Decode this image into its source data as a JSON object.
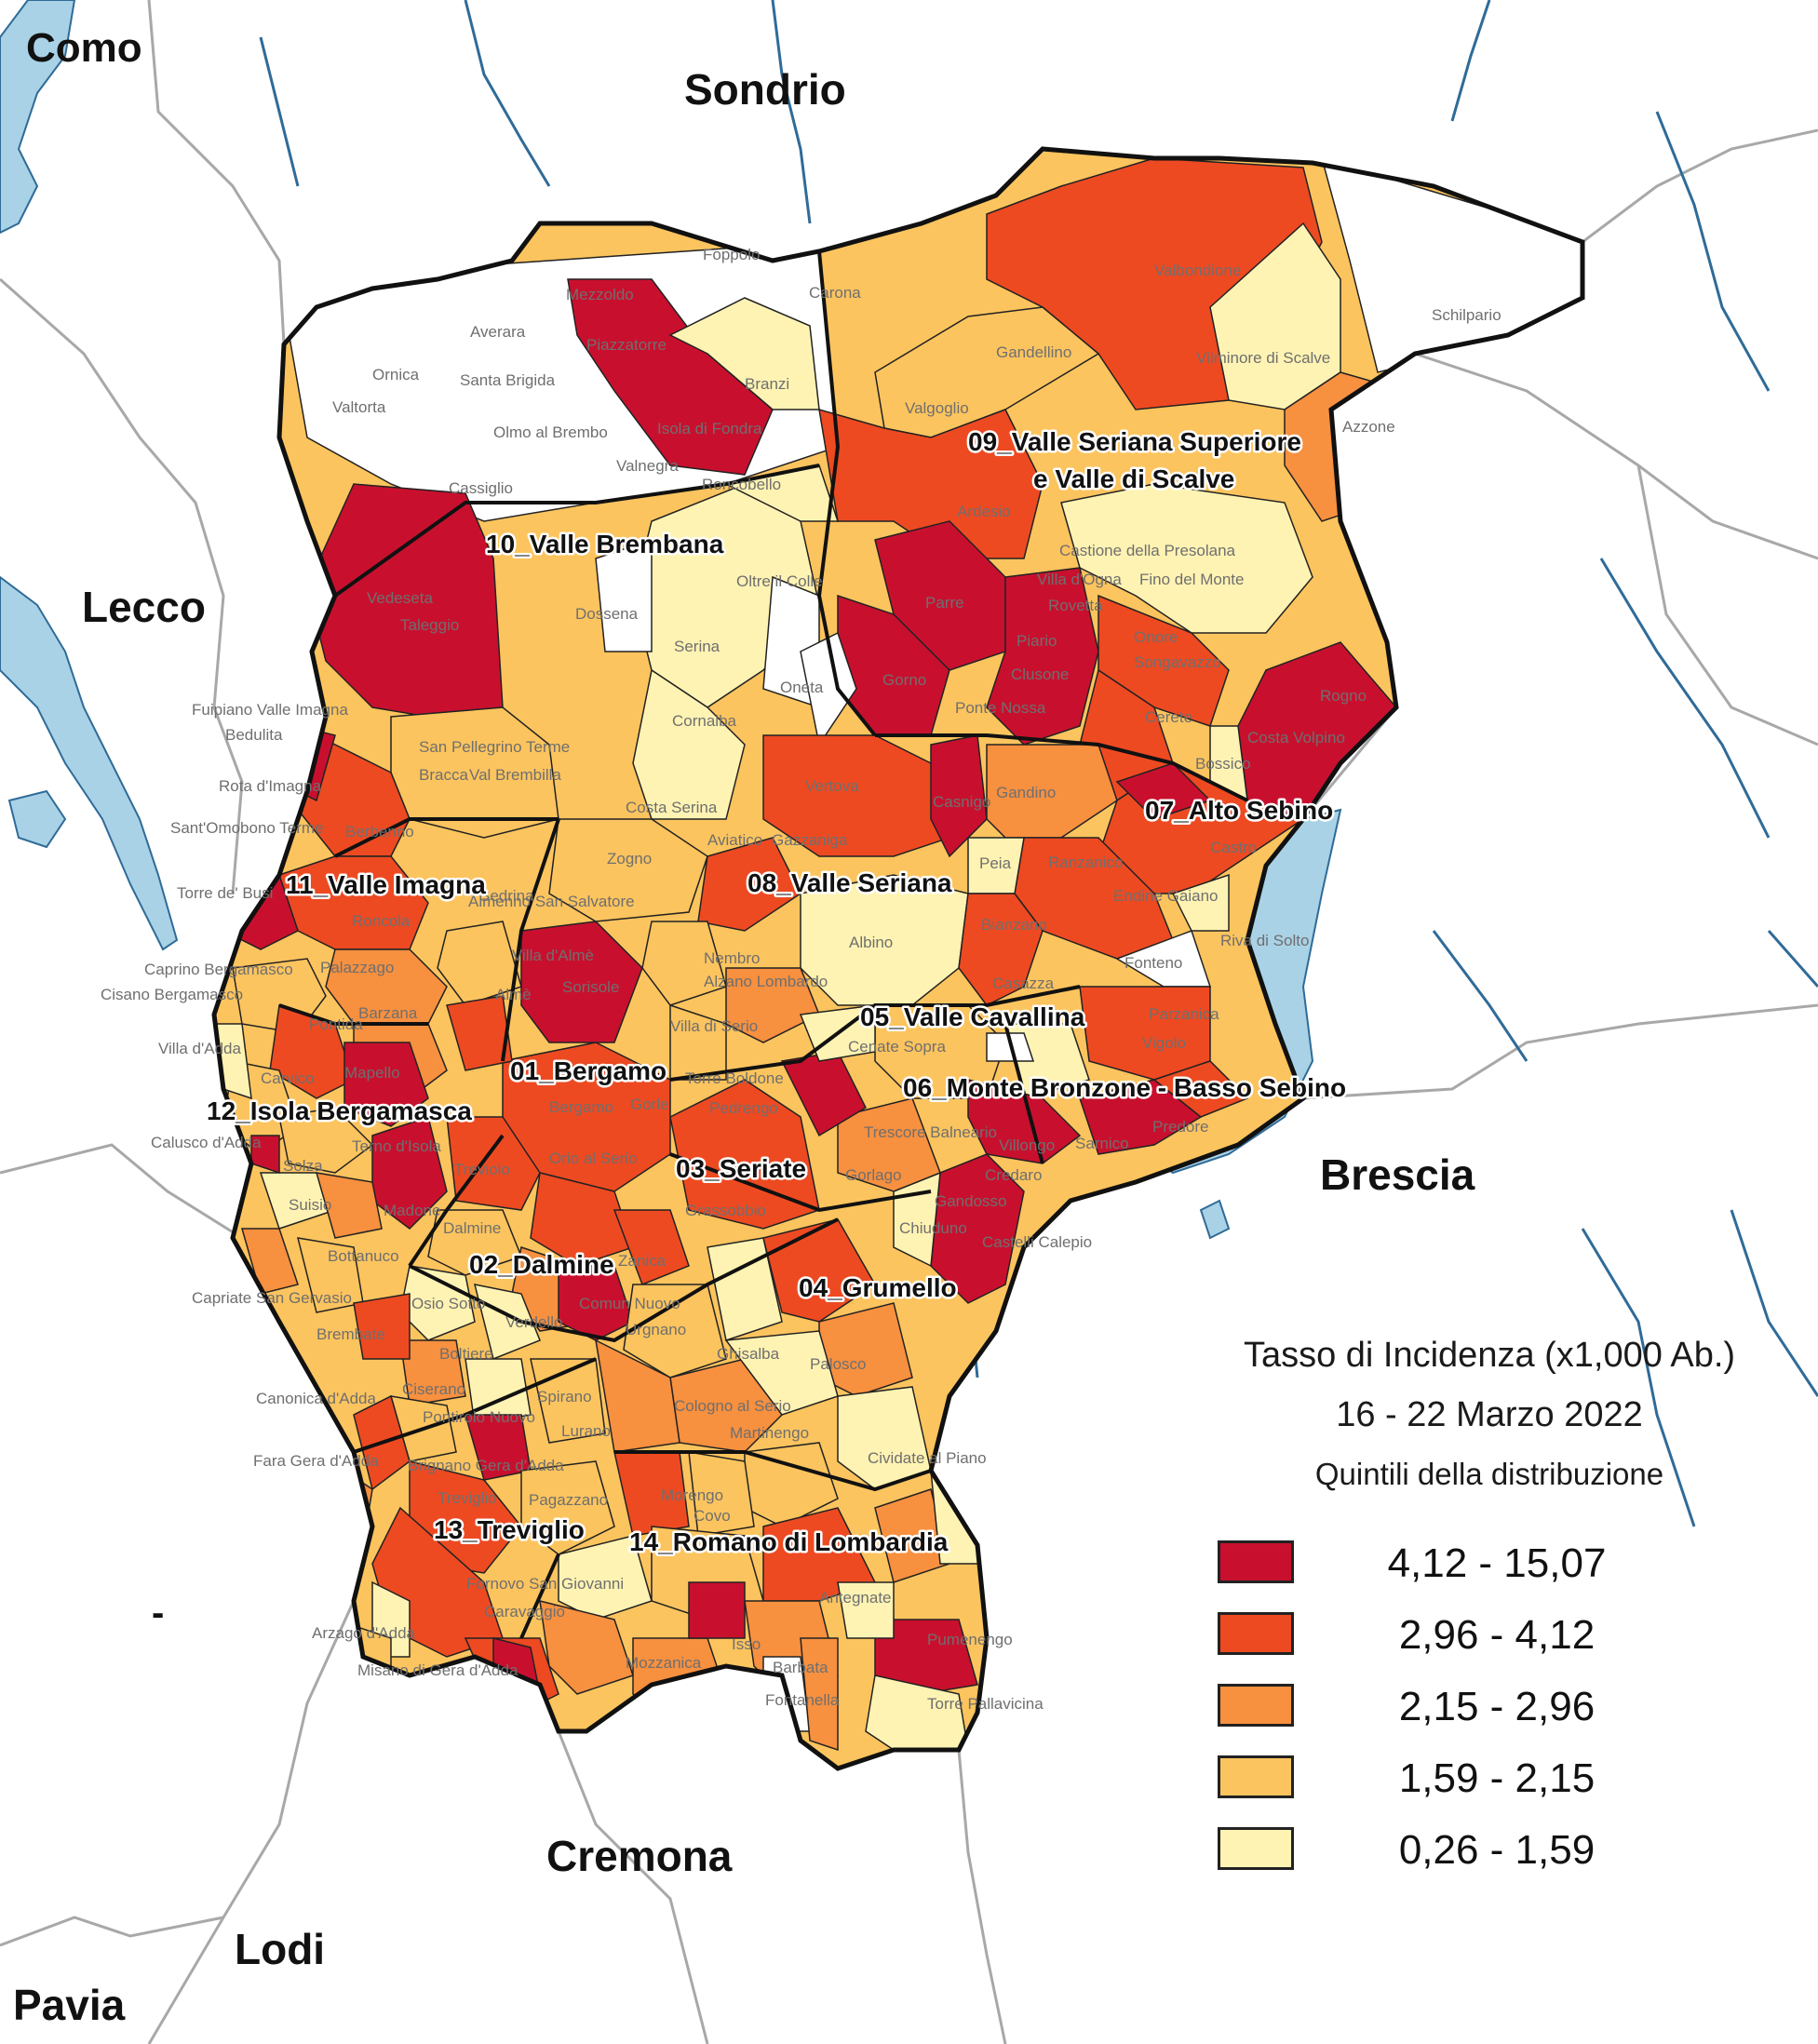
{
  "provinces": {
    "como": "Como",
    "sondrio": "Sondrio",
    "lecco": "Lecco",
    "brescia": "Brescia",
    "cremona": "Cremona",
    "lodi": "Lodi",
    "pavia": "Pavia",
    "dash": "-"
  },
  "districts": {
    "d01": "01_Bergamo",
    "d02": "02_Dalmine",
    "d03": "03_Seriate",
    "d04": "04_Grumello",
    "d05": "05_Valle Cavallina",
    "d06": "06_Monte Bronzone - Basso Sebino",
    "d07": "07_Alto Sebino",
    "d08": "08_Valle Seriana",
    "d09a": "09_Valle Seriana Superiore",
    "d09b": "e Valle di Scalve",
    "d10": "10_Valle Brembana",
    "d11": "11_Valle Imagna",
    "d12": "12_Isola Bergamasca",
    "d13": "13_Treviglio",
    "d14": "14_Romano di Lombardia"
  },
  "towns": {
    "t01": "Foppolo",
    "t02": "Carona",
    "t03": "Mezzoldo",
    "t04": "Averara",
    "t05": "Piazzatorre",
    "t06": "Ornica",
    "t07": "Santa Brigida",
    "t08": "Branzi",
    "t09": "Valtorta",
    "t10": "Olmo al Brembo",
    "t11": "Isola di Fondra",
    "t12": "Valnegra",
    "t13": "Cassiglio",
    "t14": "Roncobello",
    "t15": "Valbondione",
    "t16": "Schilpario",
    "t17": "Gandellino",
    "t18": "Vilminore di Scalve",
    "t19": "Valgoglio",
    "t20": "Azzone",
    "t21": "Ardesio",
    "t22": "Castione della Presolana",
    "t23": "Villa d'Ogna",
    "t24": "Fino del Monte",
    "t25": "Rovetta",
    "t26": "Parre",
    "t27": "Piario",
    "t28": "Onore",
    "t29": "Songavazzo",
    "t30": "Clusone",
    "t31": "Oltre il Colle",
    "t32": "Dossena",
    "t33": "Vedeseta",
    "t34": "Taleggio",
    "t35": "Serina",
    "t36": "Gorno",
    "t37": "Oneta",
    "t38": "Ponte Nossa",
    "t39": "Cerete",
    "t40": "Rogno",
    "t41": "Costa Volpino",
    "t42": "Fuipiano Valle Imagna",
    "t43": "Bedulita",
    "t44": "Cornalba",
    "t45": "San Pellegrino Terme",
    "t46": "Bracca",
    "t47": "Val Brembilla",
    "t48": "Bossico",
    "t49": "Rota d'Imagna",
    "t50": "Berbenno",
    "t51": "Costa Serina",
    "t52": "Vertova",
    "t53": "Casnigo",
    "t54": "Gandino",
    "t55": "Sant'Omobono Terme",
    "t56": "Gazzaniga",
    "t57": "Aviatico",
    "t58": "Zogno",
    "t59": "Peia",
    "t60": "Ranzanico",
    "t61": "Castro",
    "t62": "Torre de' Busi",
    "t63": "Sedrina",
    "t64": "Endine Gaiano",
    "t65": "Albino",
    "t66": "Roncola",
    "t67": "Almenno San Salvatore",
    "t68": "Bianzano",
    "t69": "Riva di Solto",
    "t70": "Villa d'Almè",
    "t71": "Nembro",
    "t72": "Fonteno",
    "t73": "Caprino Bergamasco",
    "t74": "Palazzago",
    "t75": "Cisano Bergamasco",
    "t76": "Sorisole",
    "t77": "Alzano Lombardo",
    "t78": "Casazza",
    "t79": "Almè",
    "t80": "Barzana",
    "t81": "Parzanica",
    "t82": "Pontida",
    "t83": "Villa di Serio",
    "t84": "Cenate Sopra",
    "t85": "Villa d'Adda",
    "t86": "Vigolo",
    "t87": "Mapello",
    "t88": "Carvico",
    "t89": "Torre Boldone",
    "t90": "Gorle",
    "t91": "Bergamo",
    "t92": "Pedrengo",
    "t93": "Trescore Balneario",
    "t94": "Predore",
    "t95": "Calusco d'Adda",
    "t96": "Terno d'Isola",
    "t97": "Orio al Serio",
    "t98": "Villongo",
    "t99": "Sarnico",
    "t100": "Solza",
    "t101": "Treviolo",
    "t102": "Gorlago",
    "t103": "Credaro",
    "t104": "Suisio",
    "t105": "Madone",
    "t106": "Grassobbio",
    "t107": "Gandosso",
    "t108": "Chiuduno",
    "t109": "Castelli Calepio",
    "t110": "Dalmine",
    "t111": "Bottanuco",
    "t112": "Zanica",
    "t113": "Capriate San Gervasio",
    "t114": "Osio Sotto",
    "t115": "Comun Nuovo",
    "t116": "Brembate",
    "t117": "Verdello",
    "t118": "Urgnano",
    "t119": "Boltiere",
    "t120": "Ghisalba",
    "t121": "Palosco",
    "t122": "Canonica d'Adda",
    "t123": "Ciserano",
    "t124": "Spirano",
    "t125": "Cologno al Serio",
    "t126": "Pontirolo Nuovo",
    "t127": "Martinengo",
    "t128": "Fara Gera d'Adda",
    "t129": "Lurano",
    "t130": "Cividate al Piano",
    "t131": "Brignano Gera d'Adda",
    "t132": "Treviglio",
    "t133": "Pagazzano",
    "t134": "Morengo",
    "t135": "Covo",
    "t136": "Fornovo San Giovanni",
    "t137": "Caravaggio",
    "t138": "Antegnate",
    "t139": "Arzago d'Adda",
    "t140": "Pumenengo",
    "t141": "Misano di Gera d'Adda",
    "t142": "Mozzanica",
    "t143": "Isso",
    "t144": "Barbata",
    "t145": "Fontanella",
    "t146": "Torre Pallavicina"
  },
  "legend": {
    "title": "Tasso di Incidenza (x1,000 Ab.)",
    "period": "16 - 22 Marzo 2022",
    "subtitle": "Quintili della distribuzione",
    "classes": [
      {
        "label": "4,12 - 15,07",
        "color": "#c8102e"
      },
      {
        "label": "2,96 - 4,12",
        "color": "#ed4a22"
      },
      {
        "label": "2,15 - 2,96",
        "color": "#f7903f"
      },
      {
        "label": "1,59 - 2,15",
        "color": "#fcc45e"
      },
      {
        "label": "0,26 - 1,59",
        "color": "#fff3b3"
      }
    ]
  },
  "colors": {
    "water": "#a9d2e6",
    "river": "#2f6b98",
    "border_outer": "#111111",
    "border_other": "#a8a8a8",
    "no_data": "#ffffff"
  }
}
